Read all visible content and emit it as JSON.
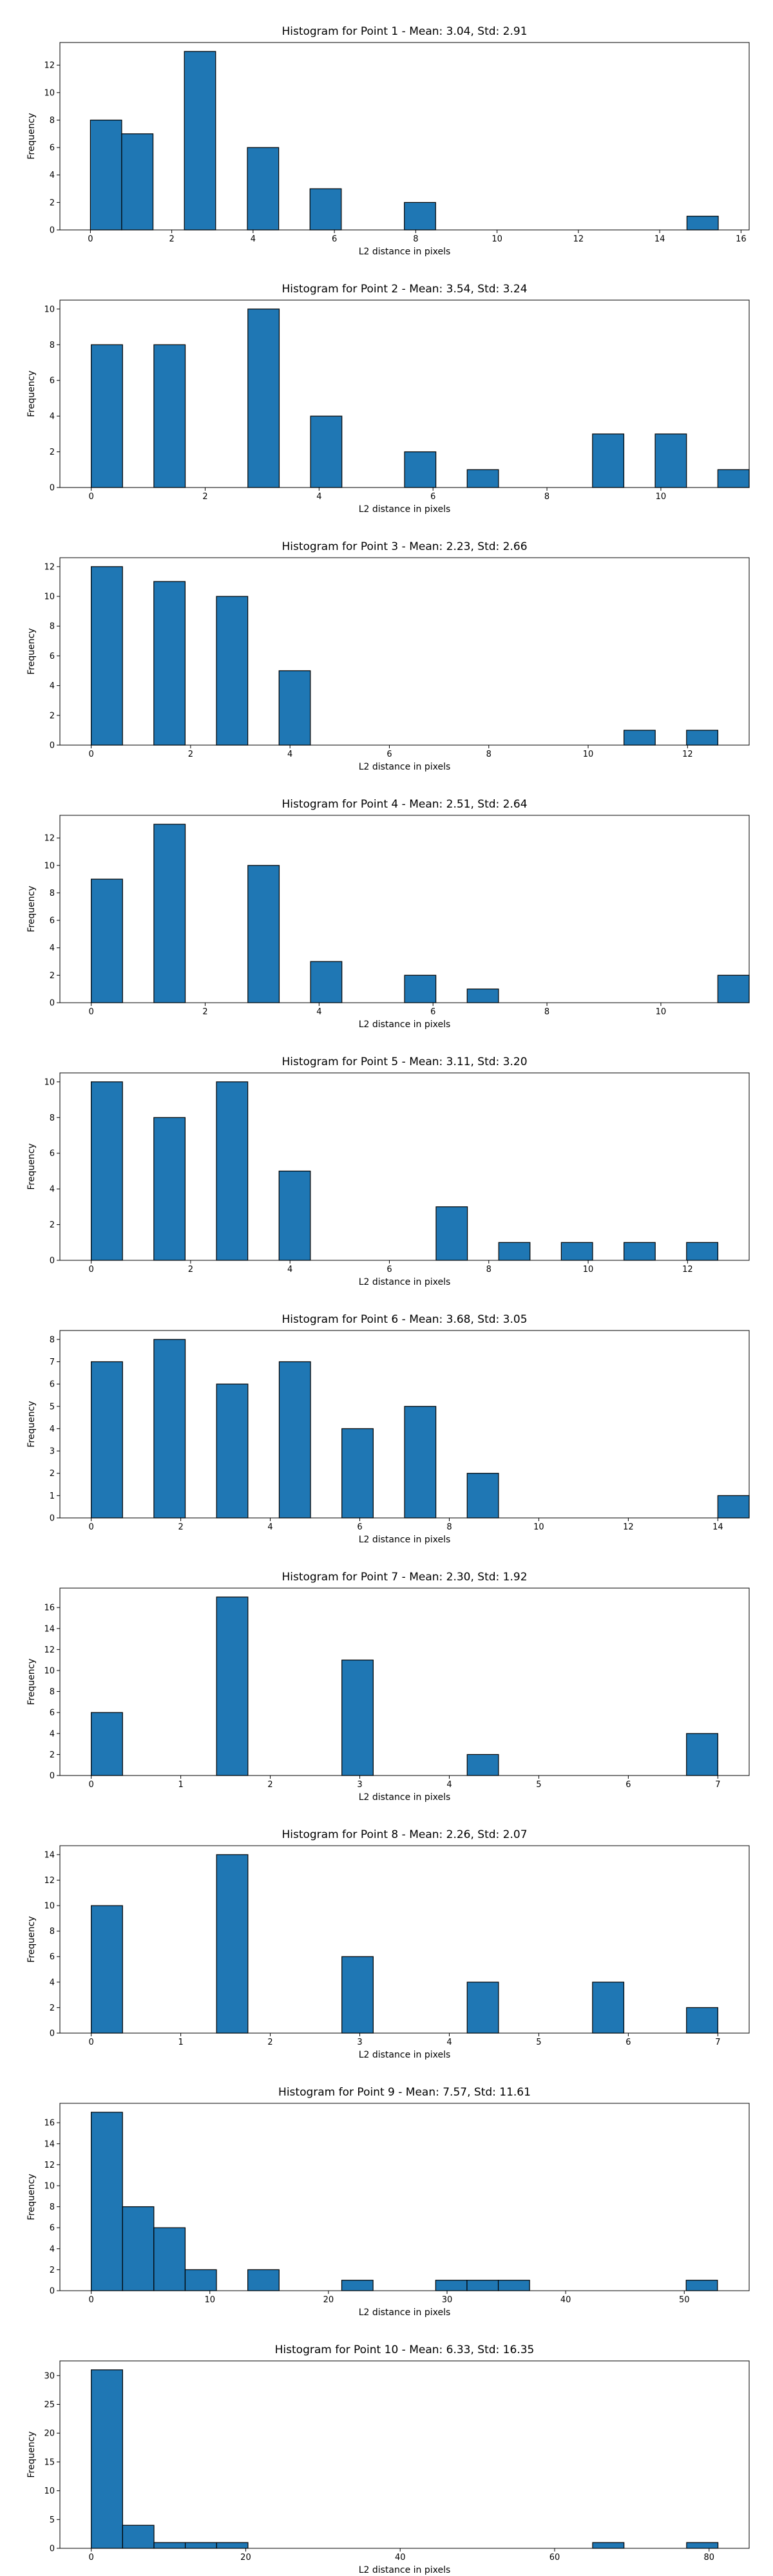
{
  "colors": {
    "bar_fill": "#1f77b4",
    "bar_edge": "#000000",
    "axis": "#000000",
    "text": "#000000"
  },
  "chart_data": [
    {
      "type": "bar",
      "title": "Histogram for Point 1 - Mean: 3.04, Std: 2.91",
      "xlabel": "L2 distance in pixels",
      "ylabel": "Frequency",
      "xlim": [
        -0.75,
        16.2
      ],
      "ylim": [
        0,
        13.65
      ],
      "xticks": [
        0,
        2,
        4,
        6,
        8,
        10,
        12,
        14,
        16
      ],
      "yticks": [
        0,
        2,
        4,
        6,
        8,
        10,
        12
      ],
      "bin_width": 0.77,
      "bins": [
        {
          "left": 0.0,
          "value": 8
        },
        {
          "left": 0.77,
          "value": 7
        },
        {
          "left": 2.31,
          "value": 13
        },
        {
          "left": 3.86,
          "value": 6
        },
        {
          "left": 5.4,
          "value": 3
        },
        {
          "left": 7.72,
          "value": 2
        },
        {
          "left": 14.67,
          "value": 1
        }
      ]
    },
    {
      "type": "bar",
      "title": "Histogram for Point 2 - Mean: 3.54, Std: 3.24",
      "xlabel": "L2 distance in pixels",
      "ylabel": "Frequency",
      "xlim": [
        -0.55,
        11.55
      ],
      "ylim": [
        0,
        10.5
      ],
      "xticks": [
        0,
        2,
        4,
        6,
        8,
        10
      ],
      "yticks": [
        0,
        2,
        4,
        6,
        8,
        10
      ],
      "bin_width": 0.55,
      "bins": [
        {
          "left": 0.0,
          "value": 8
        },
        {
          "left": 1.1,
          "value": 8
        },
        {
          "left": 2.75,
          "value": 10
        },
        {
          "left": 3.85,
          "value": 4
        },
        {
          "left": 5.5,
          "value": 2
        },
        {
          "left": 6.6,
          "value": 1
        },
        {
          "left": 8.8,
          "value": 3
        },
        {
          "left": 9.9,
          "value": 3
        },
        {
          "left": 11.0,
          "value": 1
        }
      ]
    },
    {
      "type": "bar",
      "title": "Histogram for Point 3 - Mean: 2.23, Std: 2.66",
      "xlabel": "L2 distance in pixels",
      "ylabel": "Frequency",
      "xlim": [
        -0.63,
        13.24
      ],
      "ylim": [
        0,
        12.6
      ],
      "xticks": [
        0,
        2,
        4,
        6,
        8,
        10,
        12
      ],
      "yticks": [
        0,
        2,
        4,
        6,
        8,
        10,
        12
      ],
      "bin_width": 0.63,
      "bins": [
        {
          "left": 0.0,
          "value": 12
        },
        {
          "left": 1.26,
          "value": 11
        },
        {
          "left": 2.52,
          "value": 10
        },
        {
          "left": 3.78,
          "value": 5
        },
        {
          "left": 10.72,
          "value": 1
        },
        {
          "left": 11.98,
          "value": 1
        }
      ]
    },
    {
      "type": "bar",
      "title": "Histogram for Point 4 - Mean: 2.51, Std: 2.64",
      "xlabel": "L2 distance in pixels",
      "ylabel": "Frequency",
      "xlim": [
        -0.55,
        11.55
      ],
      "ylim": [
        0,
        13.65
      ],
      "xticks": [
        0,
        2,
        4,
        6,
        8,
        10
      ],
      "yticks": [
        0,
        2,
        4,
        6,
        8,
        10,
        12
      ],
      "bin_width": 0.55,
      "bins": [
        {
          "left": 0.0,
          "value": 9
        },
        {
          "left": 1.1,
          "value": 13
        },
        {
          "left": 2.75,
          "value": 10
        },
        {
          "left": 3.85,
          "value": 3
        },
        {
          "left": 5.5,
          "value": 2
        },
        {
          "left": 6.6,
          "value": 1
        },
        {
          "left": 11.0,
          "value": 2
        }
      ]
    },
    {
      "type": "bar",
      "title": "Histogram for Point 5 - Mean: 3.11, Std: 3.20",
      "xlabel": "L2 distance in pixels",
      "ylabel": "Frequency",
      "xlim": [
        -0.63,
        13.24
      ],
      "ylim": [
        0,
        10.5
      ],
      "xticks": [
        0,
        2,
        4,
        6,
        8,
        10,
        12
      ],
      "yticks": [
        0,
        2,
        4,
        6,
        8,
        10
      ],
      "bin_width": 0.63,
      "bins": [
        {
          "left": 0.0,
          "value": 10
        },
        {
          "left": 1.26,
          "value": 8
        },
        {
          "left": 2.52,
          "value": 10
        },
        {
          "left": 3.78,
          "value": 5
        },
        {
          "left": 6.94,
          "value": 3
        },
        {
          "left": 8.2,
          "value": 1
        },
        {
          "left": 9.46,
          "value": 1
        },
        {
          "left": 10.72,
          "value": 1
        },
        {
          "left": 11.98,
          "value": 1
        }
      ]
    },
    {
      "type": "bar",
      "title": "Histogram for Point 6 - Mean: 3.68, Std: 3.05",
      "xlabel": "L2 distance in pixels",
      "ylabel": "Frequency",
      "xlim": [
        -0.7,
        14.7
      ],
      "ylim": [
        0,
        8.4
      ],
      "xticks": [
        0,
        2,
        4,
        6,
        8,
        10,
        12,
        14
      ],
      "yticks": [
        0,
        1,
        2,
        3,
        4,
        5,
        6,
        7,
        8
      ],
      "bin_width": 0.7,
      "bins": [
        {
          "left": 0.0,
          "value": 7
        },
        {
          "left": 1.4,
          "value": 8
        },
        {
          "left": 2.8,
          "value": 6
        },
        {
          "left": 4.2,
          "value": 7
        },
        {
          "left": 5.6,
          "value": 4
        },
        {
          "left": 7.0,
          "value": 5
        },
        {
          "left": 8.4,
          "value": 2
        },
        {
          "left": 14.0,
          "value": 1
        }
      ]
    },
    {
      "type": "bar",
      "title": "Histogram for Point 7 - Mean: 2.30, Std: 1.92",
      "xlabel": "L2 distance in pixels",
      "ylabel": "Frequency",
      "xlim": [
        -0.35,
        7.35
      ],
      "ylim": [
        0,
        17.85
      ],
      "xticks": [
        0,
        1,
        2,
        3,
        4,
        5,
        6,
        7
      ],
      "yticks": [
        0,
        2,
        4,
        6,
        8,
        10,
        12,
        14,
        16
      ],
      "bin_width": 0.35,
      "bins": [
        {
          "left": 0.0,
          "value": 6
        },
        {
          "left": 1.4,
          "value": 17
        },
        {
          "left": 2.8,
          "value": 11
        },
        {
          "left": 4.2,
          "value": 2
        },
        {
          "left": 6.65,
          "value": 4
        }
      ]
    },
    {
      "type": "bar",
      "title": "Histogram for Point 8 - Mean: 2.26, Std: 2.07",
      "xlabel": "L2 distance in pixels",
      "ylabel": "Frequency",
      "xlim": [
        -0.35,
        7.35
      ],
      "ylim": [
        0,
        14.7
      ],
      "xticks": [
        0,
        1,
        2,
        3,
        4,
        5,
        6,
        7
      ],
      "yticks": [
        0,
        2,
        4,
        6,
        8,
        10,
        12,
        14
      ],
      "bin_width": 0.35,
      "bins": [
        {
          "left": 0.0,
          "value": 10
        },
        {
          "left": 1.4,
          "value": 14
        },
        {
          "left": 2.8,
          "value": 6
        },
        {
          "left": 4.2,
          "value": 4
        },
        {
          "left": 5.6,
          "value": 4
        },
        {
          "left": 6.65,
          "value": 2
        }
      ]
    },
    {
      "type": "bar",
      "title": "Histogram for Point 9 - Mean: 7.57, Std: 11.61",
      "xlabel": "L2 distance in pixels",
      "ylabel": "Frequency",
      "xlim": [
        -2.64,
        55.47
      ],
      "ylim": [
        0,
        17.85
      ],
      "xticks": [
        0,
        10,
        20,
        30,
        40,
        50
      ],
      "yticks": [
        0,
        2,
        4,
        6,
        8,
        10,
        12,
        14,
        16
      ],
      "bin_width": 2.64,
      "bins": [
        {
          "left": 0.0,
          "value": 17
        },
        {
          "left": 2.64,
          "value": 8
        },
        {
          "left": 5.28,
          "value": 6
        },
        {
          "left": 7.92,
          "value": 2
        },
        {
          "left": 13.2,
          "value": 2
        },
        {
          "left": 21.12,
          "value": 1
        },
        {
          "left": 29.04,
          "value": 1
        },
        {
          "left": 31.68,
          "value": 1
        },
        {
          "left": 34.32,
          "value": 1
        },
        {
          "left": 50.16,
          "value": 1
        }
      ]
    },
    {
      "type": "bar",
      "title": "Histogram for Point 10 - Mean: 6.33, Std: 16.35",
      "xlabel": "L2 distance in pixels",
      "ylabel": "Frequency",
      "xlim": [
        -4.06,
        85.19
      ],
      "ylim": [
        0,
        32.55
      ],
      "xticks": [
        0,
        20,
        40,
        60,
        80
      ],
      "yticks": [
        0,
        5,
        10,
        15,
        20,
        25,
        30
      ],
      "bin_width": 4.06,
      "bins": [
        {
          "left": 0.0,
          "value": 31
        },
        {
          "left": 4.06,
          "value": 4
        },
        {
          "left": 8.12,
          "value": 1
        },
        {
          "left": 12.17,
          "value": 1
        },
        {
          "left": 16.23,
          "value": 1
        },
        {
          "left": 64.92,
          "value": 1
        },
        {
          "left": 77.09,
          "value": 1
        }
      ]
    }
  ]
}
